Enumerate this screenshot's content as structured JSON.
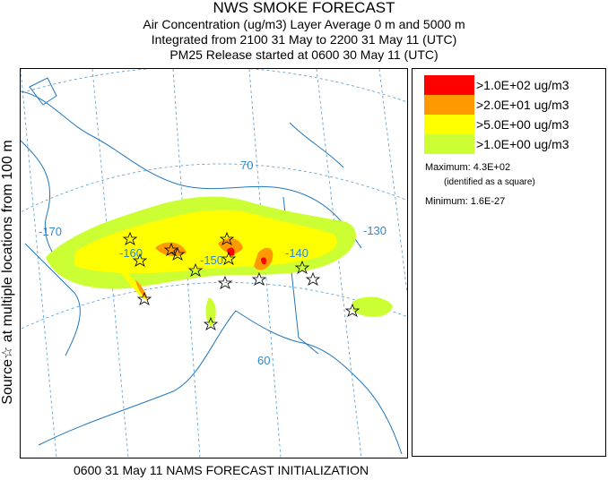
{
  "header": {
    "title": "NWS SMOKE FORECAST",
    "line2": "Air Concentration (ug/m3) Layer Average     0 m and  5000 m",
    "line3": "Integrated from 2100 31 May to 2200 31 May 11 (UTC)",
    "line4": "PM25 Release started at 0600 30 May 11 (UTC)"
  },
  "side_label": "Source☆ at multiple locations   from   100 m",
  "footer": "0600 31 May 11 NAMS FORECAST INITIALIZATION",
  "legend": {
    "items": [
      {
        "label": ">1.0E+02 ug/m3",
        "color": "#ff0000"
      },
      {
        "label": ">2.0E+01 ug/m3",
        "color": "#ff9900"
      },
      {
        "label": ">5.0E+00 ug/m3",
        "color": "#ffff00"
      },
      {
        "label": ">1.0E+00 ug/m3",
        "color": "#ccff33"
      }
    ],
    "maximum": "Maximum: 4.3E+02",
    "maximum_note": "(identified as a square)",
    "minimum": "Minimum: 1.6E-27"
  },
  "map": {
    "gridline_color": "#5599cc",
    "labels": {
      "lat70": "70",
      "lat60": "60",
      "lon170": "-170",
      "lon160": "-160",
      "lon150": "-150",
      "lon140": "-140",
      "lon130": "-130"
    }
  }
}
